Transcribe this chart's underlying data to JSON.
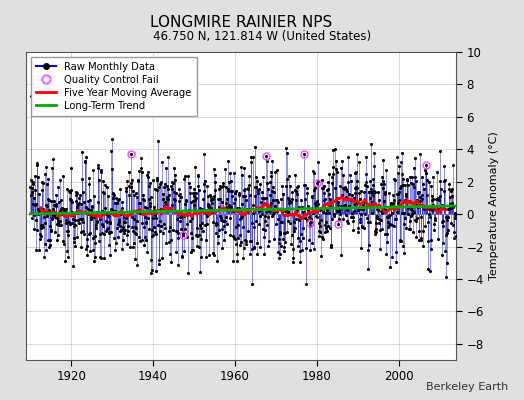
{
  "title": "LONGMIRE RAINIER NPS",
  "subtitle": "46.750 N, 121.814 W (United States)",
  "ylabel": "Temperature Anomaly (°C)",
  "watermark": "Berkeley Earth",
  "ylim": [
    -9,
    10
  ],
  "yticks": [
    -8,
    -6,
    -4,
    -2,
    0,
    2,
    4,
    6,
    8,
    10
  ],
  "xlim": [
    1909,
    2014
  ],
  "xticks": [
    1920,
    1940,
    1960,
    1980,
    2000
  ],
  "start_year": 1910,
  "end_year": 2013,
  "bg_color": "#e0e0e0",
  "plot_bg_color": "#ffffff",
  "raw_line_color": "#0000cc",
  "raw_dot_color": "#000000",
  "qc_fail_color": "#ff44ff",
  "moving_avg_color": "#ff0000",
  "trend_color": "#00aa00",
  "legend_raw_label": "Raw Monthly Data",
  "legend_qc_label": "Quality Control Fail",
  "legend_mavg_label": "Five Year Moving Average",
  "legend_trend_label": "Long-Term Trend",
  "seed": 137
}
